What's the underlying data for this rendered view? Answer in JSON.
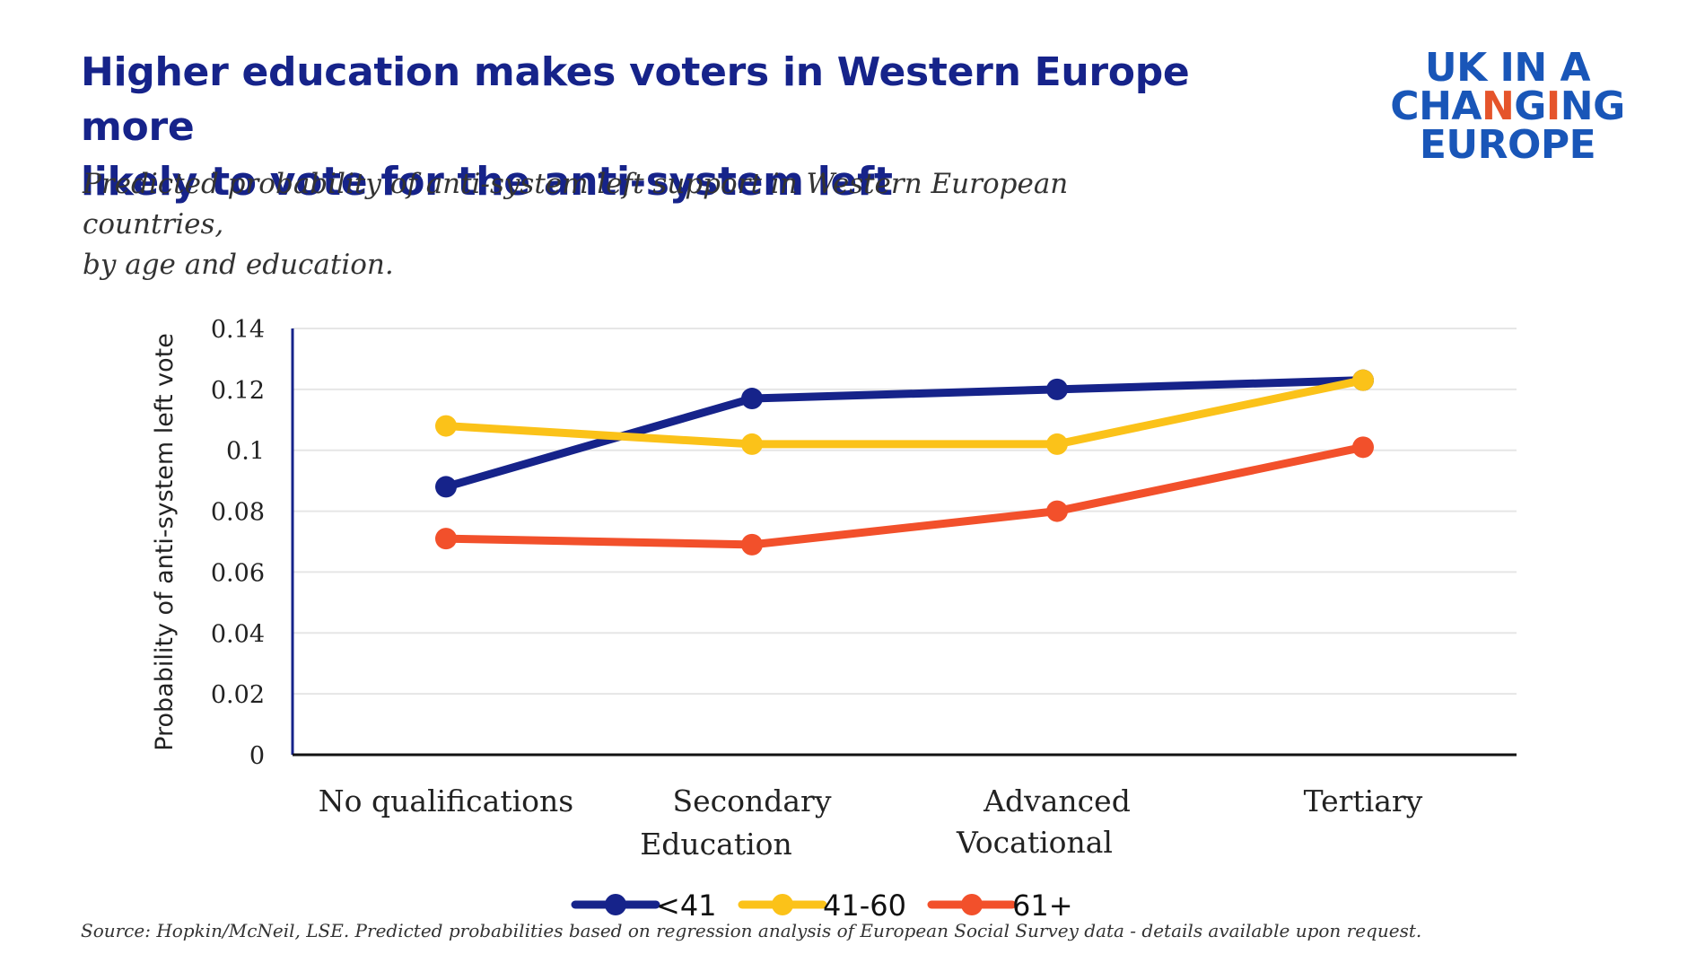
{
  "header": {
    "title_lines": [
      "Higher education makes voters in Western Europe more",
      "likely to vote for the anti-system left"
    ],
    "subtitle_lines": [
      "Predicted probability of anti-system left support in Western European countries,",
      "by age and education."
    ]
  },
  "logo": {
    "lines": [
      "UK IN A",
      "CHANGING",
      "EUROPE"
    ],
    "accent_color": "#e5542b",
    "color": "#1956b8"
  },
  "source": "Source: Hopkin/McNeil, LSE. Predicted probabilities based on regression analysis of European Social Survey data - details available upon request.",
  "chart_data": {
    "type": "line",
    "title": "",
    "xlabel": "",
    "ylabel": "Probability of anti-system left vote",
    "categories": [
      [
        "No qualifications"
      ],
      [
        "Secondary",
        "Education"
      ],
      [
        "Advanced",
        "Vocational"
      ],
      [
        "Tertiary"
      ]
    ],
    "ylim": [
      0,
      0.14
    ],
    "yticks": [
      0,
      0.02,
      0.04,
      0.06,
      0.08,
      0.1,
      0.12,
      0.14
    ],
    "ytick_labels": [
      "0",
      "0.02",
      "0.04",
      "0.06",
      "0.08",
      "0.1",
      "0.12",
      "0.14"
    ],
    "grid": true,
    "legend_position": "bottom-center",
    "series": [
      {
        "name": "<41",
        "color": "#16238a",
        "values": [
          0.088,
          0.117,
          0.12,
          0.123
        ]
      },
      {
        "name": "41-60",
        "color": "#fbc219",
        "values": [
          0.108,
          0.102,
          0.102,
          0.123
        ]
      },
      {
        "name": "61+",
        "color": "#f2502b",
        "values": [
          0.071,
          0.069,
          0.08,
          0.101
        ]
      }
    ]
  }
}
